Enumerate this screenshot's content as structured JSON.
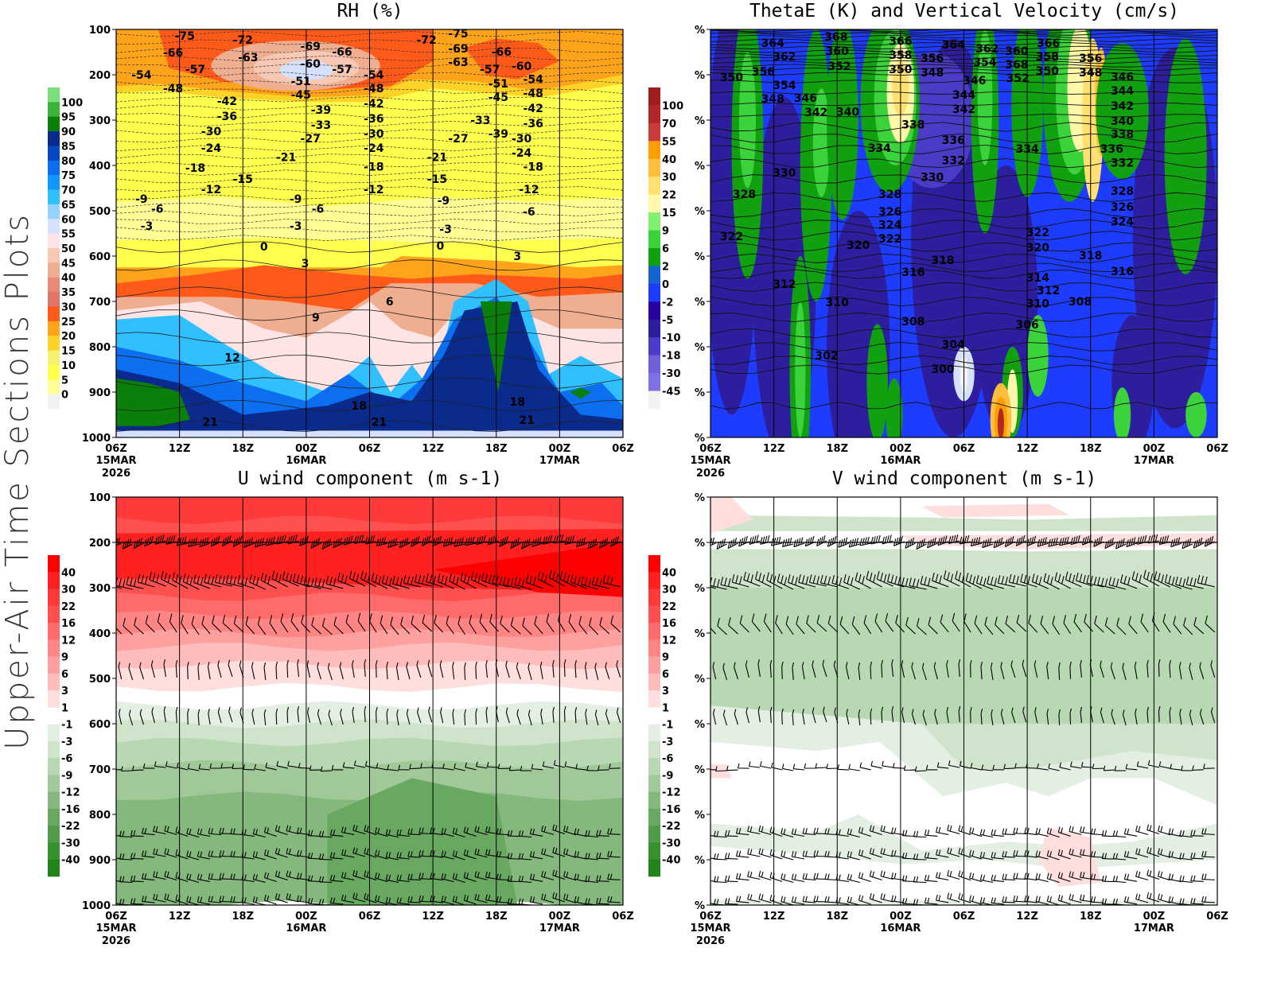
{
  "side_label": "Upper-Air Time Sections Plots",
  "x_ticks": [
    {
      "hour": 0,
      "label": "06Z",
      "date": "15MAR",
      "year": "2026"
    },
    {
      "hour": 6,
      "label": "12Z"
    },
    {
      "hour": 12,
      "label": "18Z"
    },
    {
      "hour": 18,
      "label": "00Z",
      "date": "16MAR"
    },
    {
      "hour": 24,
      "label": "06Z"
    },
    {
      "hour": 30,
      "label": "12Z"
    },
    {
      "hour": 36,
      "label": "18Z"
    },
    {
      "hour": 42,
      "label": "00Z",
      "date": "17MAR"
    },
    {
      "hour": 48,
      "label": "06Z"
    }
  ],
  "chart_data": [
    {
      "type": "heatmap",
      "title": "RH (%)",
      "y_ticks": [
        "100",
        "200",
        "300",
        "400",
        "500",
        "600",
        "700",
        "800",
        "900",
        "1000"
      ],
      "ylim": [
        100,
        1000
      ],
      "y_inverted": true,
      "colorbar": {
        "labels": [
          "100",
          "95",
          "90",
          "85",
          "80",
          "75",
          "70",
          "65",
          "60",
          "55",
          "50",
          "45",
          "40",
          "35",
          "30",
          "25",
          "20",
          "15",
          "10",
          "5",
          "0"
        ],
        "colors": [
          "#77e07a",
          "#3db23d",
          "#0a800a",
          "#0a2a8c",
          "#0648c0",
          "#0c6ff0",
          "#1496ff",
          "#30c0ff",
          "#96d2ff",
          "#d6e0ff",
          "#ffe4e6",
          "#f7c8b4",
          "#efae90",
          "#e88a78",
          "#e07565",
          "#ff5a1a",
          "#ffa31a",
          "#ffd228",
          "#f5f06e",
          "#ffff4d",
          "#ffff96",
          "#f2f2f2"
        ]
      },
      "contour_labels": [
        [
          6.5,
          114,
          "-75"
        ],
        [
          5.4,
          151,
          "-66"
        ],
        [
          2.4,
          200,
          "-54"
        ],
        [
          7.5,
          188,
          "-57"
        ],
        [
          5.4,
          230,
          "-48"
        ],
        [
          12,
          123,
          "-72"
        ],
        [
          12.5,
          161,
          "-63"
        ],
        [
          10.5,
          258,
          "-42"
        ],
        [
          10.5,
          286,
          "-36"
        ],
        [
          9,
          319,
          "-30"
        ],
        [
          9,
          361,
          "-24"
        ],
        [
          7.5,
          405,
          "-18"
        ],
        [
          9,
          453,
          "-12"
        ],
        [
          12,
          430,
          "-15"
        ],
        [
          2.4,
          474,
          "-9"
        ],
        [
          3.9,
          496,
          "-6"
        ],
        [
          2.9,
          533,
          "-3"
        ],
        [
          18.4,
          137,
          "-69"
        ],
        [
          18.4,
          175,
          "-60"
        ],
        [
          17.5,
          214,
          "-51"
        ],
        [
          17.5,
          244,
          "-45"
        ],
        [
          21.4,
          149,
          "-66"
        ],
        [
          21.4,
          188,
          "-57"
        ],
        [
          19.4,
          272,
          "-39"
        ],
        [
          19.4,
          300,
          "-33"
        ],
        [
          18.4,
          340,
          "-27"
        ],
        [
          16.1,
          382,
          "-21"
        ],
        [
          17,
          474,
          "-9"
        ],
        [
          19.1,
          496,
          "-6"
        ],
        [
          17,
          533,
          "-3"
        ],
        [
          24.4,
          200,
          "-54"
        ],
        [
          24.4,
          230,
          "-48"
        ],
        [
          24.4,
          258,
          "-42"
        ],
        [
          24.4,
          286,
          "-36"
        ],
        [
          24.4,
          319,
          "-30"
        ],
        [
          24.4,
          361,
          "-24"
        ],
        [
          24.4,
          403,
          "-18"
        ],
        [
          24.4,
          453,
          "-12"
        ],
        [
          29.4,
          123,
          "-72"
        ],
        [
          32.4,
          109,
          "-75"
        ],
        [
          32.4,
          137,
          "-69"
        ],
        [
          32.4,
          161,
          "-63"
        ],
        [
          34.5,
          300,
          "-33"
        ],
        [
          32.4,
          340,
          "-27"
        ],
        [
          30.4,
          382,
          "-21"
        ],
        [
          30.4,
          430,
          "-15"
        ],
        [
          31,
          477,
          "-9"
        ],
        [
          31.2,
          540,
          "-3"
        ],
        [
          30.7,
          577,
          "0"
        ],
        [
          35.4,
          188,
          "-57"
        ],
        [
          36.2,
          214,
          "-51"
        ],
        [
          36.2,
          244,
          "-45"
        ],
        [
          36.2,
          272,
          "-39"
        ],
        [
          36.5,
          149,
          "-66"
        ],
        [
          38.4,
          175,
          "-60"
        ],
        [
          39.5,
          204,
          "-54"
        ],
        [
          39.5,
          230,
          "-48"
        ],
        [
          39.5,
          258,
          "-42"
        ],
        [
          39.5,
          286,
          "-36"
        ],
        [
          38.4,
          319,
          "-30"
        ],
        [
          38.4,
          361,
          "-24"
        ],
        [
          39.5,
          403,
          "-18"
        ],
        [
          39.1,
          453,
          "-12"
        ],
        [
          39.1,
          502,
          "-6"
        ],
        [
          38,
          600,
          "3"
        ],
        [
          14,
          579,
          "0"
        ],
        [
          17.9,
          616,
          "3"
        ],
        [
          25.9,
          700,
          "6"
        ],
        [
          18.9,
          735,
          "9"
        ],
        [
          11,
          824,
          "12"
        ],
        [
          23,
          930,
          "18"
        ],
        [
          38,
          921,
          "18"
        ],
        [
          8.9,
          966,
          "21"
        ],
        [
          24.9,
          966,
          "21"
        ],
        [
          38.9,
          961,
          "21"
        ]
      ]
    },
    {
      "type": "heatmap",
      "title": "ThetaE (K) and Vertical Velocity (cm/s)",
      "y_ticks": [
        "%",
        "%",
        "%",
        "%",
        "%",
        "%",
        "%",
        "%",
        "%",
        "%"
      ],
      "ylim": [
        100,
        1000
      ],
      "y_inverted": true,
      "colorbar": {
        "labels": [
          "100",
          "70",
          "55",
          "40",
          "30",
          "22",
          "15",
          "9",
          "6",
          "2",
          "0",
          "-2",
          "-5",
          "-10",
          "-18",
          "-30",
          "-45"
        ],
        "colors": [
          "#a01e1e",
          "#b22828",
          "#c83c3c",
          "#ff9e00",
          "#ffbe3c",
          "#ffe070",
          "#fff8a8",
          "#80f070",
          "#3cd23c",
          "#10a010",
          "#1464d2",
          "#1e3cff",
          "#2800a0",
          "#2d1e9e",
          "#4b3cc8",
          "#7060dc",
          "#8070e6",
          "#f2f2f2"
        ]
      },
      "contour_labels": [
        [
          5.9,
          130,
          "364"
        ],
        [
          7,
          139,
          "362"
        ],
        [
          11.9,
          116,
          "368"
        ],
        [
          5,
          161,
          "356"
        ],
        [
          7,
          170,
          "354"
        ],
        [
          12,
          147,
          "360"
        ],
        [
          12.2,
          181,
          "352"
        ],
        [
          2,
          205,
          "350"
        ],
        [
          5.9,
          195,
          "348"
        ],
        [
          9,
          209,
          "346"
        ],
        [
          18,
          125,
          "366"
        ],
        [
          18,
          156,
          "358"
        ],
        [
          18,
          188,
          "350"
        ],
        [
          21,
          163,
          "356"
        ],
        [
          21,
          195,
          "348"
        ],
        [
          23,
          133,
          "364"
        ],
        [
          26.2,
          142,
          "362"
        ],
        [
          29,
          147,
          "360"
        ],
        [
          31.9,
          160,
          "358"
        ],
        [
          32,
          130,
          "366"
        ],
        [
          29,
          119,
          "368"
        ],
        [
          26,
          172,
          "354"
        ],
        [
          29.1,
          181,
          "352"
        ],
        [
          31.9,
          186,
          "350"
        ],
        [
          36,
          163,
          "356"
        ],
        [
          36,
          195,
          "348"
        ],
        [
          39,
          204,
          "346"
        ],
        [
          39,
          230,
          "344"
        ],
        [
          39,
          258,
          "342"
        ],
        [
          39,
          286,
          "340"
        ],
        [
          39,
          310,
          "338"
        ],
        [
          38,
          337,
          "336"
        ],
        [
          39,
          389,
          "332"
        ],
        [
          39,
          456,
          "328"
        ],
        [
          39,
          491,
          "326"
        ],
        [
          39,
          524,
          "324"
        ],
        [
          25,
          212,
          "346"
        ],
        [
          24,
          239,
          "344"
        ],
        [
          24,
          265,
          "342"
        ],
        [
          10,
          261,
          "342"
        ],
        [
          13,
          282,
          "340"
        ],
        [
          19.2,
          310,
          "338"
        ],
        [
          23,
          344,
          "336"
        ],
        [
          16,
          361,
          "334"
        ],
        [
          30,
          363,
          "334"
        ],
        [
          23,
          389,
          "332"
        ],
        [
          7,
          416,
          "330"
        ],
        [
          21,
          425,
          "330"
        ],
        [
          3.2,
          463,
          "328"
        ],
        [
          17,
          463,
          "328"
        ],
        [
          17,
          502,
          "326"
        ],
        [
          17,
          531,
          "324"
        ],
        [
          17,
          556,
          "322"
        ],
        [
          2,
          556,
          "322"
        ],
        [
          14,
          575,
          "320"
        ],
        [
          22,
          609,
          "318"
        ],
        [
          36,
          598,
          "318"
        ],
        [
          19.2,
          635,
          "316"
        ],
        [
          39,
          633,
          "316"
        ],
        [
          31,
          547,
          "322"
        ],
        [
          31,
          575,
          "320"
        ],
        [
          31,
          647,
          "314"
        ],
        [
          7,
          661,
          "312"
        ],
        [
          32,
          665,
          "312"
        ],
        [
          12,
          702,
          "310"
        ],
        [
          31,
          689,
          "310"
        ],
        [
          35,
          700,
          "308"
        ],
        [
          19.2,
          744,
          "308"
        ],
        [
          30,
          751,
          "306"
        ],
        [
          23,
          795,
          "304"
        ],
        [
          11,
          819,
          "302"
        ],
        [
          22,
          849,
          "300"
        ]
      ]
    },
    {
      "type": "heatmap",
      "title": "U wind component (m s-1)",
      "y_ticks": [
        "100",
        "200",
        "300",
        "400",
        "500",
        "600",
        "700",
        "800",
        "900",
        "1000"
      ],
      "ylim": [
        100,
        1000
      ],
      "y_inverted": true,
      "colorbar": {
        "labels": [
          "40",
          "30",
          "22",
          "16",
          "12",
          "9",
          "6",
          "3",
          "1",
          "-1",
          "-3",
          "-6",
          "-9",
          "-12",
          "-16",
          "-22",
          "-30",
          "-40"
        ],
        "colors": [
          "#ff0000",
          "#ff2020",
          "#ff3a3a",
          "#ff5050",
          "#ff6a6a",
          "#ff8585",
          "#ffa0a0",
          "#ffbcbc",
          "#ffdede",
          "#ffffff",
          "#e4efe4",
          "#d0e4cc",
          "#b8d8b4",
          "#a0c898",
          "#84b87c",
          "#68a860",
          "#509c48",
          "#38902e",
          "#208418"
        ]
      },
      "wind_barb_levels": [
        200,
        300,
        400,
        500,
        600,
        700,
        850,
        900,
        950,
        1000
      ]
    },
    {
      "type": "heatmap",
      "title": "V wind component (m s-1)",
      "y_ticks": [
        "%",
        "%",
        "%",
        "%",
        "%",
        "%",
        "%",
        "%",
        "%",
        "%"
      ],
      "ylim": [
        100,
        1000
      ],
      "y_inverted": true,
      "colorbar": {
        "labels": [
          "40",
          "30",
          "22",
          "16",
          "12",
          "9",
          "6",
          "3",
          "1",
          "-1",
          "-3",
          "-6",
          "-9",
          "-12",
          "-16",
          "-22",
          "-30",
          "-40"
        ],
        "colors": [
          "#ff0000",
          "#ff2020",
          "#ff3a3a",
          "#ff5050",
          "#ff6a6a",
          "#ff8585",
          "#ffa0a0",
          "#ffbcbc",
          "#ffdede",
          "#ffffff",
          "#e4efe4",
          "#d0e4cc",
          "#b8d8b4",
          "#a0c898",
          "#84b87c",
          "#68a860",
          "#509c48",
          "#38902e",
          "#208418"
        ]
      },
      "wind_barb_levels": [
        200,
        300,
        400,
        500,
        600,
        700,
        850,
        900,
        950,
        1000
      ]
    }
  ]
}
